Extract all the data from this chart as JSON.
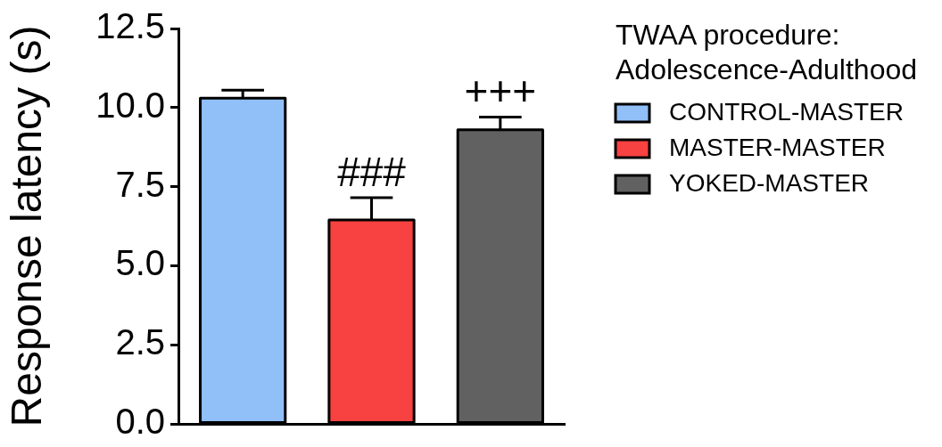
{
  "chart_data": {
    "type": "bar",
    "categories": [
      null
    ],
    "series": [
      {
        "name": "CONTROL-MASTER",
        "color": "#91bff8",
        "values": [
          10.3
        ],
        "errors": [
          0.25
        ]
      },
      {
        "name": "MASTER-MASTER",
        "color": "#f84141",
        "values": [
          6.45
        ],
        "errors": [
          0.7
        ]
      },
      {
        "name": "YOKED-MASTER",
        "color": "#616161",
        "values": [
          9.3
        ],
        "errors": [
          0.4
        ]
      }
    ],
    "ylabel": "Response latency (s)",
    "legend_title": "TWAA procedure:\nAdolescence-Adulthood",
    "ylim": [
      0,
      12.5
    ],
    "yticks": [
      {
        "value": 0,
        "label": "0.0"
      },
      2.5,
      {
        "value": 5,
        "label": "5.0"
      },
      7.5,
      {
        "value": 10,
        "label": "10.0"
      },
      12.5
    ],
    "annotations": [
      "###",
      "+++"
    ],
    "legend": "top right",
    "tick_labels": "y"
  }
}
